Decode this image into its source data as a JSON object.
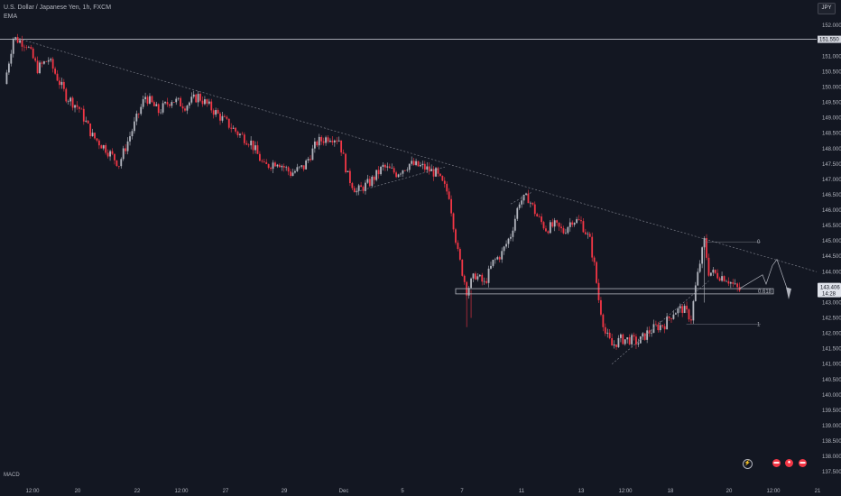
{
  "header": {
    "symbol_line": "U.S. Dollar / Japanese Yen, 1h, FXCM",
    "indicator": "EMA",
    "currency_button": "JPY"
  },
  "footer": {
    "macd_label": "MACD"
  },
  "colors": {
    "background": "#131722",
    "up": "#b2b5be",
    "down": "#f23645",
    "trend": "#787b86",
    "grid_text": "#b2b5be"
  },
  "icons": [
    "lightning-icon",
    "flag-icon-1",
    "flag-icon-2",
    "flag-icon-3"
  ],
  "chart_data": {
    "type": "candlestick",
    "title": "U.S. Dollar / Japanese Yen, 1h, FXCM",
    "y_ticks": [
      "152.000",
      "151.500",
      "151.000",
      "150.500",
      "150.000",
      "149.500",
      "149.000",
      "148.500",
      "148.000",
      "147.500",
      "147.000",
      "146.500",
      "146.000",
      "145.500",
      "145.000",
      "144.500",
      "144.000",
      "143.500",
      "143.000",
      "142.500",
      "142.000",
      "141.500",
      "141.000",
      "140.500",
      "140.000",
      "139.500",
      "139.000",
      "138.500",
      "138.000",
      "137.500"
    ],
    "x_ticks": [
      "12:00",
      "20",
      "22",
      "12:00",
      "27",
      "29",
      "Dec",
      "5",
      "7",
      "11",
      "13",
      "12:00",
      "18",
      "20",
      "12:00",
      "21"
    ],
    "ylim": [
      137.3,
      152.3
    ],
    "horizontal_line": {
      "value": 151.55,
      "label": "151.550"
    },
    "last_price": {
      "value": 143.406,
      "label": "143.406",
      "countdown": "14:28"
    },
    "fib_labels": {
      "top": "0",
      "mid": "0.618",
      "bottom": "1"
    },
    "price_path": [
      {
        "i": 0,
        "p": 150.1
      },
      {
        "i": 4,
        "p": 151.6
      },
      {
        "i": 10,
        "p": 151.4
      },
      {
        "i": 15,
        "p": 150.6
      },
      {
        "i": 20,
        "p": 150.9
      },
      {
        "i": 28,
        "p": 149.7
      },
      {
        "i": 34,
        "p": 149.3
      },
      {
        "i": 40,
        "p": 148.4
      },
      {
        "i": 46,
        "p": 148.0
      },
      {
        "i": 52,
        "p": 147.5
      },
      {
        "i": 58,
        "p": 148.6
      },
      {
        "i": 64,
        "p": 149.7
      },
      {
        "i": 70,
        "p": 149.2
      },
      {
        "i": 76,
        "p": 149.6
      },
      {
        "i": 82,
        "p": 149.4
      },
      {
        "i": 88,
        "p": 149.7
      },
      {
        "i": 94,
        "p": 149.3
      },
      {
        "i": 100,
        "p": 148.9
      },
      {
        "i": 106,
        "p": 148.5
      },
      {
        "i": 112,
        "p": 148.2
      },
      {
        "i": 118,
        "p": 147.4
      },
      {
        "i": 124,
        "p": 147.6
      },
      {
        "i": 130,
        "p": 147.2
      },
      {
        "i": 136,
        "p": 147.4
      },
      {
        "i": 142,
        "p": 148.2
      },
      {
        "i": 148,
        "p": 148.4
      },
      {
        "i": 152,
        "p": 148.3
      },
      {
        "i": 156,
        "p": 147.1
      },
      {
        "i": 160,
        "p": 146.6
      },
      {
        "i": 166,
        "p": 146.9
      },
      {
        "i": 172,
        "p": 147.4
      },
      {
        "i": 178,
        "p": 147.2
      },
      {
        "i": 184,
        "p": 147.5
      },
      {
        "i": 190,
        "p": 147.4
      },
      {
        "i": 196,
        "p": 147.2
      },
      {
        "i": 202,
        "p": 146.5
      },
      {
        "i": 206,
        "p": 144.6
      },
      {
        "i": 210,
        "p": 143.4
      },
      {
        "i": 214,
        "p": 143.9
      },
      {
        "i": 218,
        "p": 143.6
      },
      {
        "i": 222,
        "p": 144.3
      },
      {
        "i": 226,
        "p": 144.6
      },
      {
        "i": 230,
        "p": 145.2
      },
      {
        "i": 234,
        "p": 146.3
      },
      {
        "i": 238,
        "p": 146.4
      },
      {
        "i": 242,
        "p": 145.8
      },
      {
        "i": 246,
        "p": 145.4
      },
      {
        "i": 250,
        "p": 145.5
      },
      {
        "i": 254,
        "p": 145.3
      },
      {
        "i": 258,
        "p": 145.7
      },
      {
        "i": 262,
        "p": 145.6
      },
      {
        "i": 266,
        "p": 145.0
      },
      {
        "i": 268,
        "p": 144.2
      },
      {
        "i": 270,
        "p": 143.1
      },
      {
        "i": 273,
        "p": 142.0
      },
      {
        "i": 276,
        "p": 141.6
      },
      {
        "i": 280,
        "p": 141.8
      },
      {
        "i": 284,
        "p": 141.8
      },
      {
        "i": 288,
        "p": 141.7
      },
      {
        "i": 292,
        "p": 142.0
      },
      {
        "i": 296,
        "p": 142.2
      },
      {
        "i": 300,
        "p": 142.3
      },
      {
        "i": 304,
        "p": 142.7
      },
      {
        "i": 308,
        "p": 142.8
      },
      {
        "i": 312,
        "p": 142.5
      },
      {
        "i": 314,
        "p": 143.5
      },
      {
        "i": 316,
        "p": 144.3
      },
      {
        "i": 318,
        "p": 145.0
      },
      {
        "i": 320,
        "p": 144.0
      },
      {
        "i": 324,
        "p": 143.9
      },
      {
        "i": 328,
        "p": 143.8
      },
      {
        "i": 332,
        "p": 143.5
      },
      {
        "i": 334,
        "p": 143.4
      }
    ],
    "grid": false,
    "legend_position": "top-left"
  }
}
